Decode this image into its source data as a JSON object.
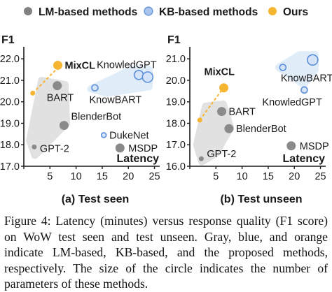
{
  "legend": [
    {
      "label": "LM-based methods",
      "color": "#808080",
      "hollow": false
    },
    {
      "label": "KB-based methods",
      "color": "#7fa8e0",
      "hollow": true
    },
    {
      "label": "Ours",
      "color": "#f6b531",
      "hollow": false
    }
  ],
  "colors": {
    "lm": "#8a8a8a",
    "lm_shade": "#dcdcdc",
    "kb": "#5b8fd9",
    "kb_fill": "#d4e3f7",
    "kb_shade": "#dce9f8",
    "ours": "#f6b531",
    "axis": "#1a1a1a"
  },
  "caption": "Figure 4: Latency (minutes) versus response quality (F1 score) on WoW test seen and test unseen. Gray, blue, and orange indicate LM-based, KB-based, and the proposed methods, respectively. The size of the circle indicates the number of parameters of these methods.",
  "chart_data": [
    {
      "type": "scatter",
      "subtitle": "(a) Test seen",
      "xlabel": "Latency",
      "ylabel": "F1",
      "xlim": [
        0,
        26
      ],
      "ylim": [
        17.0,
        22.3
      ],
      "xticks": [
        0,
        5,
        10,
        15,
        20,
        25
      ],
      "yticks": [
        "17.0",
        "18.0",
        "19.0",
        "20.0",
        "21.0",
        "22.0"
      ],
      "shaded_regions": [
        {
          "group": "lm",
          "points": [
            [
              1.1,
              18.2
            ],
            [
              3.4,
              21.0
            ],
            [
              7.9,
              20.8
            ],
            [
              8.2,
              19.0
            ],
            [
              4.5,
              18.1
            ],
            [
              2.1,
              17.5
            ]
          ]
        },
        {
          "group": "kb",
          "points": [
            [
              12.8,
              20.6
            ],
            [
              20.5,
              21.5
            ],
            [
              24.0,
              21.5
            ],
            [
              24.0,
              20.7
            ],
            [
              16.0,
              20.4
            ]
          ]
        }
      ],
      "lines": [
        {
          "group": "ours",
          "points": [
            [
              1.7,
              20.4
            ],
            [
              7.0,
              21.7
            ]
          ]
        }
      ],
      "points": [
        {
          "name": "MixCL",
          "group": "ours",
          "x": 6.5,
          "y": 21.7,
          "size": 6.5,
          "bold": true,
          "label_dx": 10,
          "label_dy": 5
        },
        {
          "name": "",
          "group": "ours",
          "x": 1.7,
          "y": 20.4,
          "size": 3.5
        },
        {
          "name": "BART",
          "group": "lm",
          "x": 6.4,
          "y": 20.75,
          "size": 6.5,
          "label_dx": -15,
          "label_dy": 22
        },
        {
          "name": "BlenderBot",
          "group": "lm",
          "x": 7.7,
          "y": 18.9,
          "size": 6.5,
          "label_dx": 10,
          "label_dy": -8
        },
        {
          "name": "GPT-2",
          "group": "lm",
          "x": 2.0,
          "y": 17.9,
          "size": 3.5,
          "label_dx": 8,
          "label_dy": 7
        },
        {
          "name": "MSDP",
          "group": "lm",
          "x": 18.4,
          "y": 17.85,
          "size": 6.5,
          "label_dx": 12,
          "label_dy": 5
        },
        {
          "name": "KnowledGPT",
          "group": "kb",
          "x": 22.0,
          "y": 21.25,
          "size": 6.5,
          "label_dx": -60,
          "label_dy": -10
        },
        {
          "name": "",
          "group": "kb",
          "x": 23.7,
          "y": 21.15,
          "size": 7.5
        },
        {
          "name": "KnowBART",
          "group": "kb",
          "x": 13.6,
          "y": 20.65,
          "size": 4.5,
          "label_dx": -8,
          "label_dy": 22
        },
        {
          "name": "DukeNet",
          "group": "kb",
          "x": 15.3,
          "y": 18.45,
          "size": 3.5,
          "label_dx": 8,
          "label_dy": 5
        }
      ]
    },
    {
      "type": "scatter",
      "subtitle": "(b) Test unseen",
      "xlabel": "Latency",
      "ylabel": "F1",
      "xlim": [
        0,
        26
      ],
      "ylim": [
        16.0,
        21.3
      ],
      "xticks": [
        0,
        5,
        10,
        15,
        20,
        25
      ],
      "yticks": [
        "16.0",
        "17.0",
        "18.0",
        "19.0",
        "20.0",
        "21.0"
      ],
      "shaded_regions": [
        {
          "group": "lm",
          "points": [
            [
              1.3,
              17.0
            ],
            [
              3.0,
              18.8
            ],
            [
              6.4,
              18.9
            ],
            [
              7.8,
              17.8
            ],
            [
              5.0,
              16.6
            ],
            [
              2.3,
              16.2
            ]
          ]
        },
        {
          "group": "kb",
          "points": [
            [
              17.0,
              20.6
            ],
            [
              21.0,
              21.2
            ],
            [
              24.0,
              21.2
            ],
            [
              24.0,
              20.5
            ],
            [
              21.8,
              19.8
            ]
          ]
        }
      ],
      "lines": [
        {
          "group": "ours",
          "points": [
            [
              1.9,
              18.15
            ],
            [
              6.6,
              19.7
            ]
          ]
        }
      ],
      "points": [
        {
          "name": "MixCL",
          "group": "ours",
          "x": 6.5,
          "y": 19.65,
          "size": 6.5,
          "bold": true,
          "label_dx": -28,
          "label_dy": -18
        },
        {
          "name": "",
          "group": "ours",
          "x": 1.9,
          "y": 18.15,
          "size": 3.5
        },
        {
          "name": "BART",
          "group": "lm",
          "x": 6.1,
          "y": 18.55,
          "size": 6.5,
          "label_dx": 10,
          "label_dy": 5
        },
        {
          "name": "BlenderBot",
          "group": "lm",
          "x": 7.5,
          "y": 17.75,
          "size": 6.5,
          "label_dx": 10,
          "label_dy": 5
        },
        {
          "name": "GPT-2",
          "group": "lm",
          "x": 2.2,
          "y": 16.35,
          "size": 3.5,
          "label_dx": 8,
          "label_dy": -2
        },
        {
          "name": "MSDP",
          "group": "lm",
          "x": 19.4,
          "y": 16.95,
          "size": 6.5,
          "label_dx": 12,
          "label_dy": 5
        },
        {
          "name": "KnowBART",
          "group": "kb",
          "x": 17.8,
          "y": 20.6,
          "size": 4.5,
          "label_dx": -3,
          "label_dy": 20
        },
        {
          "name": "",
          "group": "kb",
          "x": 23.5,
          "y": 20.95,
          "size": 7.5
        },
        {
          "name": "KnowledGPT",
          "group": "kb",
          "x": 21.9,
          "y": 19.55,
          "size": 4.5,
          "label_dx": -60,
          "label_dy": 22
        }
      ]
    }
  ]
}
